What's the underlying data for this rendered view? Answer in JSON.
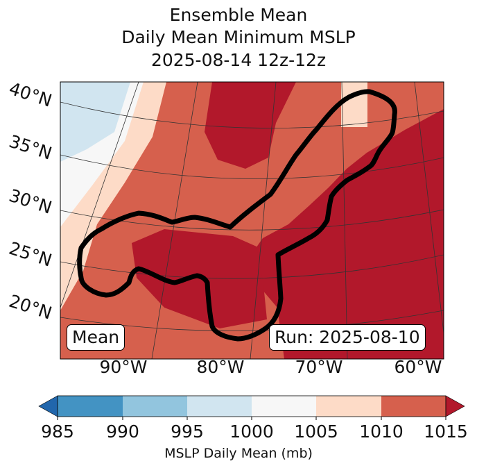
{
  "title": {
    "line1": "Ensemble Mean",
    "line2": "Daily Mean Minimum MSLP",
    "line3": "2025-08-14 12z-12z"
  },
  "map": {
    "lat_labels": [
      "40°N",
      "35°N",
      "30°N",
      "25°N",
      "20°N"
    ],
    "lon_labels": [
      "90°W",
      "80°W",
      "70°W",
      "60°W"
    ],
    "mean_label": "Mean",
    "run_label": "Run: 2025-08-10",
    "colors": {
      "c985": "#2166ac",
      "c990": "#4393c3",
      "c995": "#92c5de",
      "c1000": "#d1e5f0",
      "c1005": "#f7f7f7",
      "c1010": "#fddbc7",
      "c1015": "#d6604d",
      "over": "#b2182b"
    }
  },
  "colorbar": {
    "ticks": [
      "985",
      "990",
      "995",
      "1000",
      "1005",
      "1010",
      "1015"
    ],
    "label": "MSLP Daily Mean (mb)"
  }
}
